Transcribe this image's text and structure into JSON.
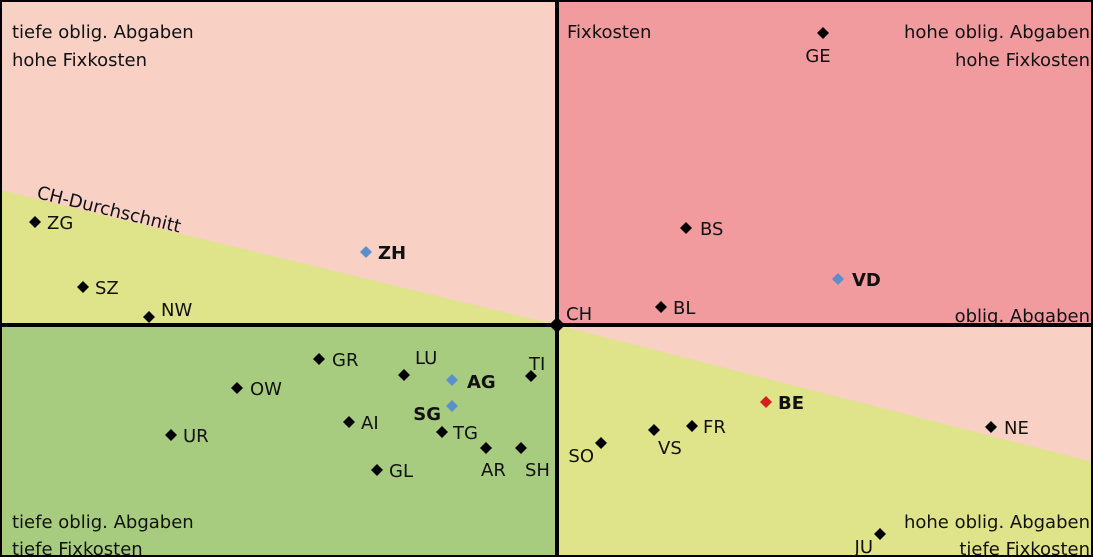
{
  "quadrants": {
    "top_left": [
      "tiefe oblig. Abgaben",
      "hohe Fixkosten"
    ],
    "top_right": [
      "hohe oblig. Abgaben",
      "hohe Fixkosten"
    ],
    "bottom_left": [
      "tiefe oblig. Abgaben",
      "tiefe Fixkosten"
    ],
    "bottom_right": [
      "hohe oblig. Abgaben",
      "tiefe Fixkosten"
    ]
  },
  "axis_labels": {
    "vertical": "Fixkosten",
    "horizontal": "oblig. Abgaben",
    "average": "CH-Durchschnitt"
  },
  "points": [
    "ZG",
    "SZ",
    "NW",
    "ZH",
    "GE",
    "BS",
    "VD",
    "BL",
    "CH",
    "GR",
    "LU",
    "AG",
    "TI",
    "OW",
    "AI",
    "SG",
    "TG",
    "UR",
    "AR",
    "SH",
    "GL",
    "SO",
    "VS",
    "FR",
    "BE",
    "NE",
    "JU"
  ]
}
